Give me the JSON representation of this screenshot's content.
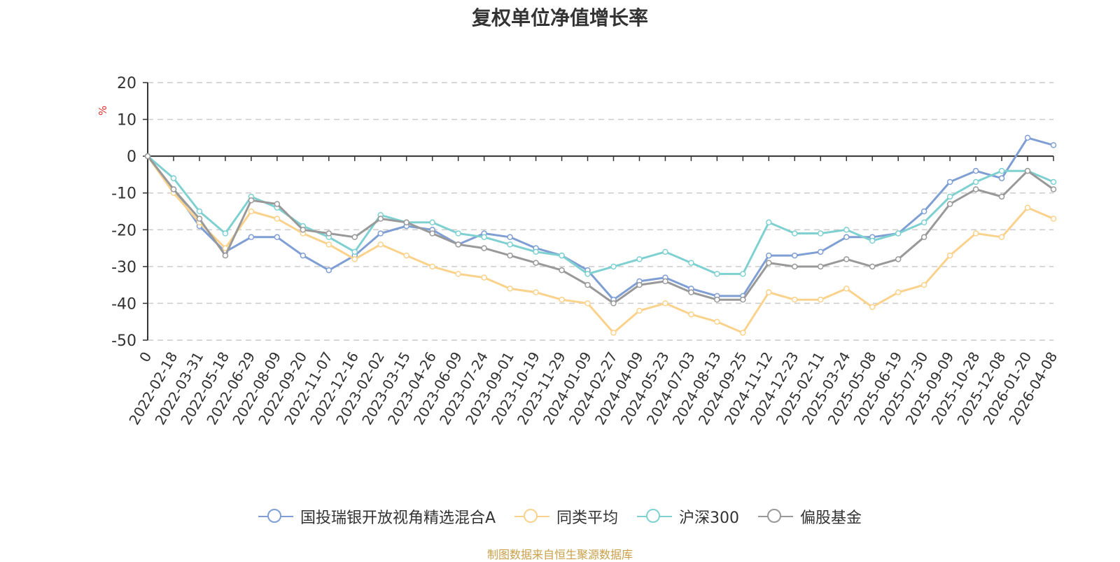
{
  "chart_data": {
    "type": "line",
    "title": "复权单位净值增长率",
    "ylabel": "%",
    "ylim": [
      -50,
      20
    ],
    "yticks": [
      20,
      10,
      0,
      -10,
      -20,
      -30,
      -40,
      -50
    ],
    "x": [
      "0",
      "2022-02-18",
      "2022-03-31",
      "2022-05-18",
      "2022-06-29",
      "2022-08-09",
      "2022-09-20",
      "2022-11-07",
      "2022-12-16",
      "2023-02-02",
      "2023-03-15",
      "2023-04-26",
      "2023-06-09",
      "2023-07-24",
      "2023-09-01",
      "2023-10-19",
      "2023-11-29",
      "2024-01-09",
      "2024-02-27",
      "2024-04-09",
      "2024-05-23",
      "2024-07-03",
      "2024-08-13",
      "2024-09-25",
      "2024-11-12",
      "2024-12-23",
      "2025-02-11",
      "2025-03-24",
      "2025-05-08",
      "2025-06-19",
      "2025-07-30",
      "2025-09-09",
      "2025-10-28",
      "2025-12-08",
      "2026-01-20",
      "2026-04-08"
    ],
    "series": [
      {
        "name": "国投瑞银开放视角精选混合A",
        "color": "#7f9fd4",
        "values": [
          0,
          -9,
          -19,
          -26,
          -22,
          -22,
          -27,
          -31,
          -27,
          -21,
          -19,
          -20,
          -24,
          -21,
          -22,
          -25,
          -27,
          -31,
          -39,
          -34,
          -33,
          -36,
          -38,
          -38,
          -27,
          -27,
          -26,
          -22,
          -22,
          -21,
          -15,
          -7,
          -4,
          -6,
          5,
          3
        ]
      },
      {
        "name": "同类平均",
        "color": "#fad28c",
        "values": [
          0,
          -10,
          -18,
          -25,
          -15,
          -17,
          -21,
          -24,
          -28,
          -24,
          -27,
          -30,
          -32,
          -33,
          -36,
          -37,
          -39,
          -40,
          -48,
          -42,
          -40,
          -43,
          -45,
          -48,
          -37,
          -39,
          -39,
          -36,
          -41,
          -37,
          -35,
          -27,
          -21,
          -22,
          -14,
          -17
        ]
      },
      {
        "name": "沪深300",
        "color": "#7fd1d1",
        "values": [
          0,
          -6,
          -15,
          -21,
          -11,
          -14,
          -19,
          -22,
          -26,
          -16,
          -18,
          -18,
          -21,
          -22,
          -24,
          -26,
          -27,
          -32,
          -30,
          -28,
          -26,
          -29,
          -32,
          -32,
          -18,
          -21,
          -21,
          -20,
          -23,
          -21,
          -18,
          -11,
          -7,
          -4,
          -4,
          -7
        ]
      },
      {
        "name": "偏股基金",
        "color": "#999999",
        "values": [
          0,
          -9,
          -17,
          -27,
          -12,
          -13,
          -20,
          -21,
          -22,
          -17,
          -18,
          -21,
          -24,
          -25,
          -27,
          -29,
          -31,
          -35,
          -40,
          -35,
          -34,
          -37,
          -39,
          -39,
          -29,
          -30,
          -30,
          -28,
          -30,
          -28,
          -22,
          -13,
          -9,
          -11,
          -4,
          -9
        ]
      }
    ]
  },
  "legend": {
    "items": [
      "国投瑞银开放视角精选混合A",
      "同类平均",
      "沪深300",
      "偏股基金"
    ]
  },
  "source_text": "制图数据来自恒生聚源数据库"
}
